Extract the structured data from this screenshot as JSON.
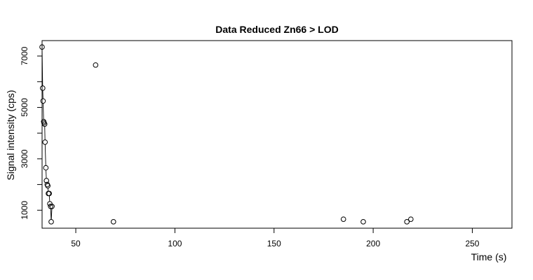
{
  "chart_data": {
    "type": "scatter",
    "title": "Data Reduced Zn66 > LOD",
    "xlabel": "Time (s)",
    "ylabel": "Signal intensity (cps)",
    "xlim": [
      33,
      270
    ],
    "ylim": [
      300,
      7600
    ],
    "x_ticks": [
      50,
      100,
      150,
      200,
      250
    ],
    "y_ticks": [
      1000,
      3000,
      5000,
      7000
    ],
    "points": [
      {
        "x": 33.0,
        "y": 7350
      },
      {
        "x": 33.3,
        "y": 5750
      },
      {
        "x": 33.5,
        "y": 5250
      },
      {
        "x": 33.8,
        "y": 4450
      },
      {
        "x": 34.0,
        "y": 4400
      },
      {
        "x": 34.3,
        "y": 4350
      },
      {
        "x": 34.5,
        "y": 3650
      },
      {
        "x": 34.9,
        "y": 2650
      },
      {
        "x": 35.2,
        "y": 2150
      },
      {
        "x": 35.6,
        "y": 2000
      },
      {
        "x": 35.9,
        "y": 1950
      },
      {
        "x": 36.2,
        "y": 1650
      },
      {
        "x": 36.6,
        "y": 1650
      },
      {
        "x": 36.9,
        "y": 1250
      },
      {
        "x": 37.3,
        "y": 1150
      },
      {
        "x": 37.6,
        "y": 550
      },
      {
        "x": 38.0,
        "y": 1150
      },
      {
        "x": 60.0,
        "y": 6650
      },
      {
        "x": 69.0,
        "y": 550
      },
      {
        "x": 185.0,
        "y": 650
      },
      {
        "x": 195.0,
        "y": 550
      },
      {
        "x": 217.0,
        "y": 550
      },
      {
        "x": 219.0,
        "y": 650
      }
    ],
    "connected_segments": [
      [
        0,
        16
      ]
    ],
    "grid": false,
    "marker": "open-circle"
  }
}
